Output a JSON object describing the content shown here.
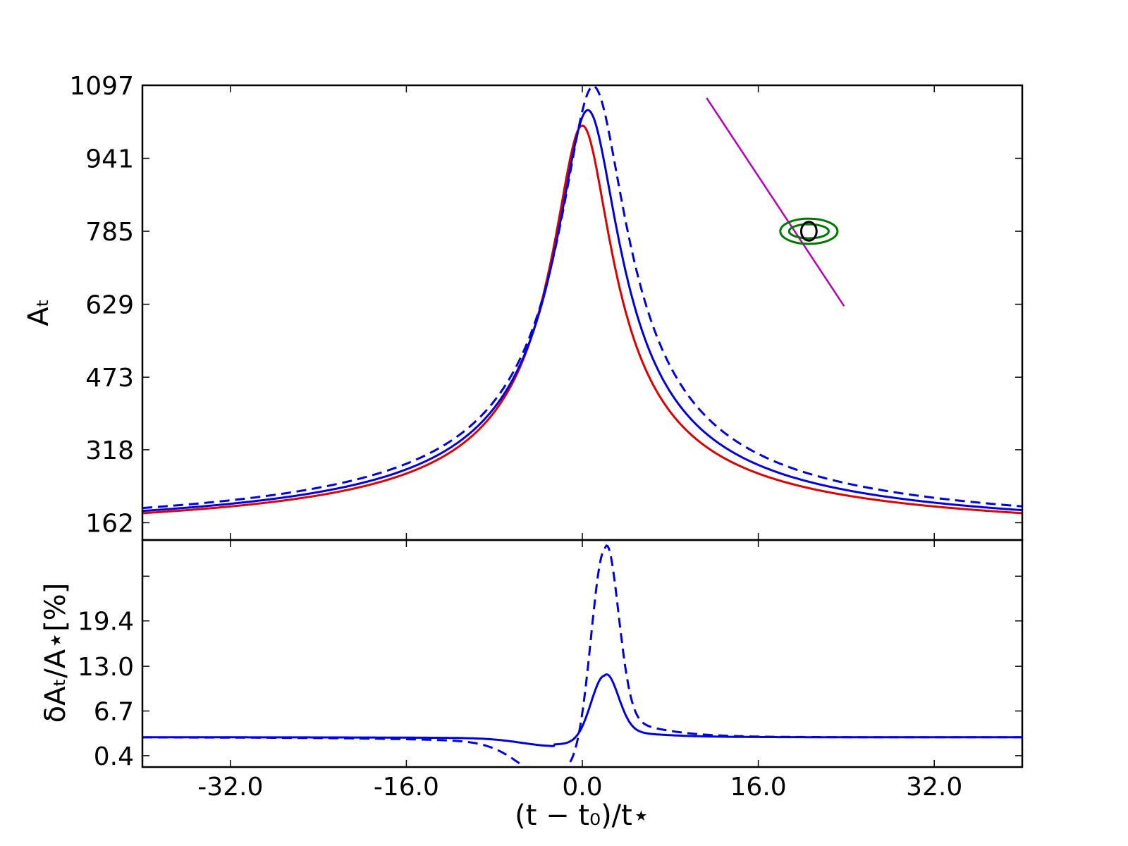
{
  "chart_data": [
    {
      "panel": "top",
      "type": "line",
      "xlabel": "(t − t₀)/t⋆",
      "ylabel": "Aₜ",
      "xlim": [
        -40,
        40
      ],
      "ylim": [
        125,
        1097
      ],
      "xticks": [
        -32.0,
        -16.0,
        0.0,
        16.0,
        32.0
      ],
      "yticks": [
        162,
        318,
        473,
        629,
        785,
        941,
        1097
      ],
      "ytick_labels": [
        "162",
        "318",
        "473",
        "629",
        "785",
        "941",
        "1097"
      ],
      "colors": {
        "red": "#dd0000",
        "blue": "#0000dd",
        "magenta": "#bb00bb",
        "green": "#007700"
      },
      "series": [
        {
          "style": "solid",
          "color": "#dd0000",
          "peak_x": 0.0,
          "peak_y": 1011,
          "width": 2.6
        },
        {
          "style": "solid",
          "color": "#0000dd",
          "peak_x": 0.5,
          "peak_y": 1044,
          "width": 2.75
        },
        {
          "style": "dashed",
          "color": "#0000dd",
          "peak_x": 1.0,
          "peak_y": 1095,
          "width": 2.9
        }
      ],
      "inset": {
        "line": {
          "x": [
            11.3,
            23.8
          ],
          "y": [
            1070,
            625
          ],
          "color": "#bb00bb"
        },
        "lens_center": {
          "x": 20.6,
          "y": 785
        },
        "rings": [
          {
            "rx": 2.6,
            "ry": 27
          },
          {
            "rx": 1.8,
            "ry": 15
          },
          {
            "rx": 0.7,
            "ry": 20
          }
        ],
        "ring_color": "#007700"
      }
    },
    {
      "panel": "bottom",
      "type": "line",
      "xlabel": "(t − t₀)/t⋆",
      "ylabel": "δAₜ/A⋆[%]",
      "xlim": [
        -40,
        40
      ],
      "ylim": [
        -1.2,
        30.8
      ],
      "xticks": [
        -32.0,
        -16.0,
        0.0,
        16.0,
        32.0
      ],
      "xtick_labels": [
        "-32.0",
        "-16.0",
        "0.0",
        "16.0",
        "32.0"
      ],
      "yticks": [
        0.4,
        6.7,
        13.0,
        19.4,
        25.7
      ],
      "ytick_labels": [
        "0.4",
        "6.7",
        "13.0",
        "19.4",
        ""
      ],
      "series": [
        {
          "style": "solid",
          "color": "#0000dd",
          "baseline": 3.0,
          "dip_x": -2.5,
          "dip_y": 2.0,
          "peak_x": 2.0,
          "peak_y": 12.0
        },
        {
          "style": "dashed",
          "color": "#0000dd",
          "baseline": 3.0,
          "dip_x": -2.5,
          "dip_y": -2.0,
          "peak_x": 2.0,
          "peak_y": 31.0
        }
      ]
    }
  ]
}
